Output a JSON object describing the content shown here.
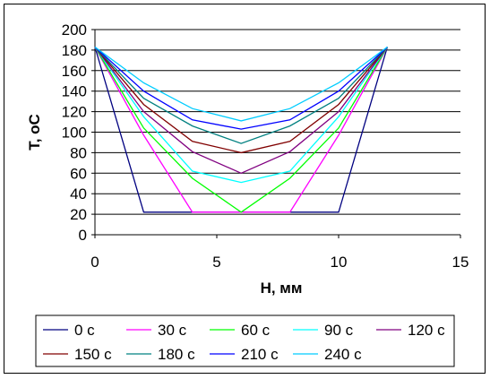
{
  "chart_data": {
    "type": "line",
    "xlabel": "H, мм",
    "ylabel": "T, oC",
    "xlim": [
      0,
      15
    ],
    "ylim": [
      0,
      200
    ],
    "xticks": [
      0,
      5,
      10,
      15
    ],
    "yticks": [
      0,
      20,
      40,
      60,
      80,
      100,
      120,
      140,
      160,
      180,
      200
    ],
    "grid": "horizontal",
    "legend_position": "bottom",
    "x": [
      0,
      2,
      4,
      6,
      8,
      10,
      12
    ],
    "series": [
      {
        "name": "0 с",
        "color": "#000080",
        "values": [
          183,
          22,
          22,
          22,
          22,
          22,
          183
        ]
      },
      {
        "name": "30 с",
        "color": "#FF00FF",
        "values": [
          183,
          97,
          22,
          22,
          22,
          97,
          183
        ]
      },
      {
        "name": "60 с",
        "color": "#00FF00",
        "values": [
          183,
          104,
          55,
          22,
          55,
          104,
          183
        ]
      },
      {
        "name": "90 с",
        "color": "#00FFFF",
        "values": [
          183,
          115,
          62,
          51,
          62,
          115,
          183
        ]
      },
      {
        "name": "120 с",
        "color": "#800080",
        "values": [
          183,
          120,
          81,
          60,
          81,
          120,
          183
        ]
      },
      {
        "name": "150 с",
        "color": "#800000",
        "values": [
          183,
          127,
          91,
          80,
          91,
          127,
          183
        ]
      },
      {
        "name": "180 с",
        "color": "#008080",
        "values": [
          183,
          133,
          106,
          89,
          106,
          133,
          183
        ]
      },
      {
        "name": "210 с",
        "color": "#0000FF",
        "values": [
          183,
          140,
          112,
          103,
          112,
          140,
          183
        ]
      },
      {
        "name": "240 с",
        "color": "#00CCFF",
        "values": [
          183,
          148,
          123,
          111,
          123,
          148,
          183
        ]
      }
    ]
  }
}
